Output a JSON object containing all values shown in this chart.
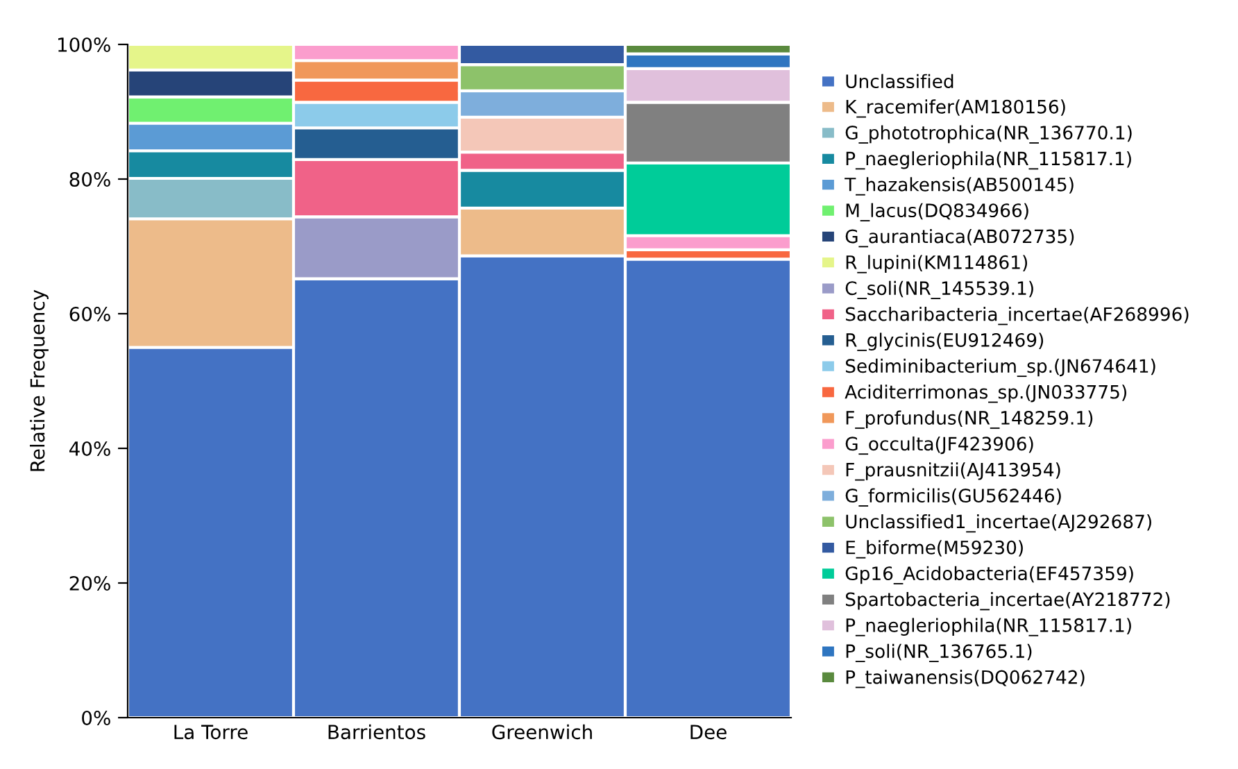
{
  "chart_data": {
    "type": "bar",
    "stacked": true,
    "ylabel": "Relative Frequency",
    "legend": "right",
    "grid": false,
    "categories": [
      "La Torre",
      "Barrientos",
      "Greenwich",
      "Dee"
    ],
    "ylim": [
      0,
      100
    ],
    "yticks": [
      {
        "value": 0,
        "label": "0%"
      },
      {
        "value": 20,
        "label": "20%"
      },
      {
        "value": 40,
        "label": "40%"
      },
      {
        "value": 60,
        "label": "60%"
      },
      {
        "value": 80,
        "label": "80%"
      },
      {
        "value": 100,
        "label": "100%"
      }
    ],
    "series": [
      {
        "name": "Unclassified",
        "color": "#4472c4",
        "values": [
          55.0,
          65.2,
          68.6,
          68.1
        ]
      },
      {
        "name": "K_racemifer(AM180156)",
        "color": "#edbb8a",
        "values": [
          19.1,
          null,
          7.1,
          null
        ]
      },
      {
        "name": "G_phototrophica(NR_136770.1)",
        "color": "#88bcc8",
        "values": [
          6.0,
          null,
          null,
          null
        ]
      },
      {
        "name": "P_naegleriophila(NR_115817.1)",
        "color": "#178aa0",
        "values": [
          4.1,
          null,
          5.6,
          null
        ]
      },
      {
        "name": "T_hazakensis(AB500145)",
        "color": "#5b9bd5",
        "values": [
          4.1,
          null,
          null,
          null
        ]
      },
      {
        "name": "M_lacus(DQ834966)",
        "color": "#70f070",
        "values": [
          3.9,
          null,
          null,
          null
        ]
      },
      {
        "name": "G_aurantiaca(AB072735)",
        "color": "#264478",
        "values": [
          4.0,
          null,
          null,
          null
        ]
      },
      {
        "name": "R_lupini(KM114861)",
        "color": "#e5f58a",
        "values": [
          3.8,
          null,
          null,
          null
        ]
      },
      {
        "name": "C_soli(NR_145539.1)",
        "color": "#9a9bc8",
        "values": [
          null,
          9.2,
          null,
          null
        ]
      },
      {
        "name": "Saccharibacteria_incertae(AF268996)",
        "color": "#f06288",
        "values": [
          null,
          8.5,
          2.7,
          null
        ]
      },
      {
        "name": "R_glycinis(EU912469)",
        "color": "#255e91",
        "values": [
          null,
          4.7,
          null,
          null
        ]
      },
      {
        "name": "Sediminibacterium_sp.(JN674641)",
        "color": "#8ccbea",
        "values": [
          null,
          3.8,
          null,
          null
        ]
      },
      {
        "name": "Aciditerrimonas_sp.(JN033775)",
        "color": "#f86840",
        "values": [
          null,
          3.3,
          null,
          1.4
        ]
      },
      {
        "name": "F_profundus(NR_148259.1)",
        "color": "#f0985a",
        "values": [
          null,
          2.9,
          null,
          null
        ]
      },
      {
        "name": "G_occulta(JF423906)",
        "color": "#fb9dcd",
        "values": [
          null,
          2.4,
          null,
          2.1
        ]
      },
      {
        "name": "F_prausnitzii(AJ413954)",
        "color": "#f4c7b8",
        "values": [
          null,
          null,
          5.2,
          null
        ]
      },
      {
        "name": "G_formicilis(GU562446)",
        "color": "#7eaedc",
        "values": [
          null,
          null,
          3.9,
          null
        ]
      },
      {
        "name": "Unclassified1_incertae(AJ292687)",
        "color": "#8dc26a",
        "values": [
          null,
          null,
          3.9,
          null
        ]
      },
      {
        "name": "E_biforme(M59230)",
        "color": "#335aa1",
        "values": [
          null,
          null,
          3.0,
          null
        ]
      },
      {
        "name": "Gp16_Acidobacteria(EF457359)",
        "color": "#00cc99",
        "values": [
          null,
          null,
          null,
          10.8
        ]
      },
      {
        "name": "Spartobacteria_incertae(AY218772)",
        "color": "#808080",
        "values": [
          null,
          null,
          null,
          9.0
        ]
      },
      {
        "name": "P_naegleriophila(NR_115817.1)",
        "color": "#e0c0dc",
        "values": [
          null,
          null,
          null,
          5.0
        ]
      },
      {
        "name": "P_soli(NR_136765.1)",
        "color": "#2e75c0",
        "values": [
          null,
          null,
          null,
          2.2
        ]
      },
      {
        "name": "P_taiwanensis(DQ062742)",
        "color": "#5a8a3e",
        "values": [
          null,
          null,
          null,
          1.4
        ]
      }
    ]
  }
}
